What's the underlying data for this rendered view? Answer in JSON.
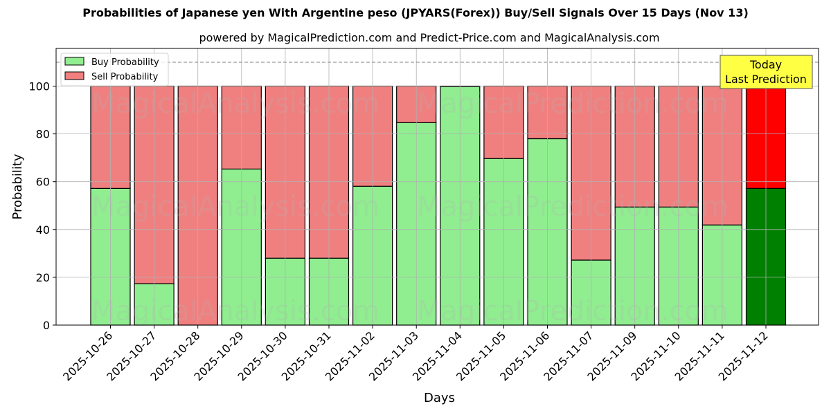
{
  "title": "Probabilities of Japanese yen With Argentine peso (JPYARS(Forex)) Buy/Sell Signals Over 15 Days (Nov 13)",
  "subtitle": "powered by MagicalPrediction.com and Predict-Price.com and MagicalAnalysis.com",
  "watermarks": [
    "MagicalAnalysis.com",
    "MagicalPrediction.com"
  ],
  "annotation": {
    "line1": "Today",
    "line2": "Last Prediction"
  },
  "colors": {
    "buy": "#90ee90",
    "sell": "#f08080",
    "buy_today": "#008000",
    "sell_today": "#ff0000",
    "annotation_bg": "#ffff44",
    "reference_line": "#808080"
  },
  "chart_data": {
    "type": "bar",
    "stacked": true,
    "title": "Probabilities of Japanese yen With Argentine peso (JPYARS(Forex)) Buy/Sell Signals Over 15 Days (Nov 13)",
    "subtitle": "powered by MagicalPrediction.com and Predict-Price.com and MagicalAnalysis.com",
    "xlabel": "Days",
    "ylabel": "Probability",
    "ylim": [
      0,
      115
    ],
    "yticks": [
      0,
      20,
      40,
      60,
      80,
      100
    ],
    "grid": true,
    "legend_position": "upper left",
    "reference_line": {
      "y": 110,
      "style": "dashed"
    },
    "categories": [
      "2025-10-26",
      "2025-10-27",
      "2025-10-28",
      "2025-10-29",
      "2025-10-30",
      "2025-10-31",
      "2025-11-02",
      "2025-11-03",
      "2025-11-04",
      "2025-11-05",
      "2025-11-06",
      "2025-11-07",
      "2025-11-09",
      "2025-11-10",
      "2025-11-11",
      "2025-11-12"
    ],
    "series": [
      {
        "name": "Buy Probability",
        "values": [
          57.2,
          17.3,
          0.0,
          65.3,
          28.0,
          28.0,
          58.1,
          84.7,
          99.8,
          69.7,
          78.0,
          27.2,
          49.4,
          49.4,
          41.9,
          57.2
        ]
      },
      {
        "name": "Sell Probability",
        "values": [
          42.8,
          82.7,
          100.0,
          34.7,
          72.0,
          72.0,
          41.9,
          15.3,
          0.2,
          30.3,
          22.0,
          72.8,
          50.6,
          50.6,
          58.1,
          42.8
        ]
      }
    ],
    "highlight_last": true,
    "annotations": [
      {
        "text": "Today\nLast Prediction",
        "x": "2025-11-12"
      }
    ]
  }
}
